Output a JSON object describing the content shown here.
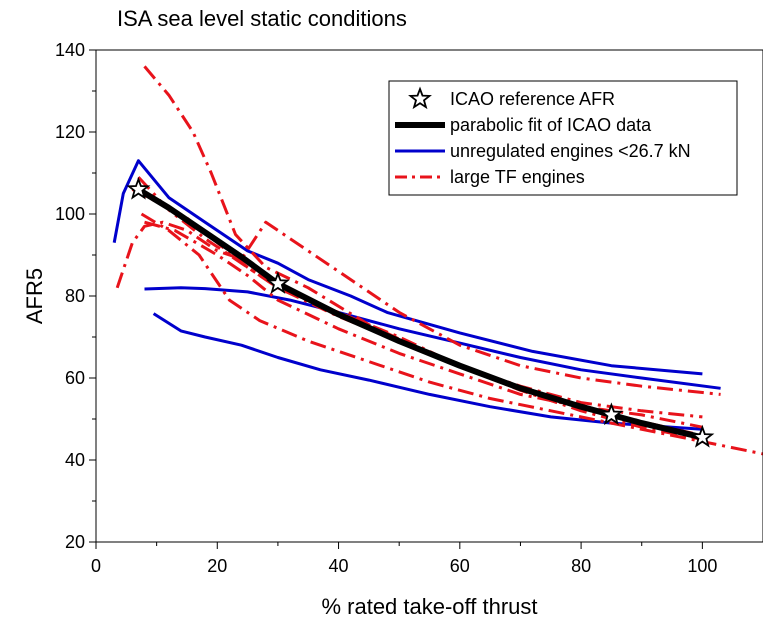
{
  "chart_data": {
    "type": "line",
    "title": "ISA sea level static conditions",
    "xlabel": "% rated take-off thrust",
    "ylabel": "AFR5",
    "xlim": [
      0,
      110
    ],
    "ylim": [
      20,
      140
    ],
    "x_ticks": [
      0,
      20,
      40,
      60,
      80,
      100
    ],
    "y_ticks": [
      20,
      40,
      60,
      80,
      100,
      120,
      140
    ],
    "grid": false,
    "legend_position": "top-right",
    "legend": [
      {
        "label": "ICAO reference AFR",
        "style": "star",
        "color": "#000000"
      },
      {
        "label": "parabolic fit of ICAO data",
        "style": "thick",
        "color": "#000000"
      },
      {
        "label": "unregulated engines <26.7 kN",
        "style": "solid",
        "color": "#0000cc"
      },
      {
        "label": "large TF engines",
        "style": "dashdot",
        "color": "#e8131b"
      }
    ],
    "series": [
      {
        "kind": "unregulated",
        "color": "#0000cc",
        "points": [
          [
            3,
            93
          ],
          [
            4.5,
            105
          ],
          [
            7,
            113
          ],
          [
            12,
            104
          ],
          [
            18,
            98
          ],
          [
            25,
            91
          ],
          [
            30,
            88
          ],
          [
            35,
            84
          ],
          [
            42,
            80
          ],
          [
            48,
            76
          ],
          [
            60,
            71
          ],
          [
            72,
            66.5
          ],
          [
            85,
            63
          ],
          [
            100,
            61
          ]
        ]
      },
      {
        "kind": "unregulated",
        "color": "#0000cc",
        "points": [
          [
            8,
            81.7
          ],
          [
            14,
            82
          ],
          [
            18,
            81.8
          ],
          [
            25,
            81
          ],
          [
            32,
            79
          ],
          [
            40,
            76
          ],
          [
            50,
            72
          ],
          [
            60,
            68.5
          ],
          [
            70,
            65
          ],
          [
            80,
            62
          ],
          [
            90,
            60
          ],
          [
            103,
            57.5
          ]
        ]
      },
      {
        "kind": "unregulated",
        "color": "#0000cc",
        "points": [
          [
            9.5,
            75.7
          ],
          [
            14,
            71.5
          ],
          [
            18,
            70
          ],
          [
            24,
            68
          ],
          [
            30,
            65
          ],
          [
            37,
            62
          ],
          [
            45,
            59.5
          ],
          [
            55,
            56
          ],
          [
            65,
            53
          ],
          [
            75,
            50.5
          ],
          [
            85,
            49
          ],
          [
            100,
            47.5
          ]
        ]
      },
      {
        "kind": "large_tf",
        "color": "#e8131b",
        "points": [
          [
            8,
            136
          ],
          [
            12,
            129
          ],
          [
            16,
            120
          ],
          [
            19,
            110
          ],
          [
            23,
            95
          ],
          [
            28,
            87
          ],
          [
            35,
            82
          ],
          [
            45,
            73
          ],
          [
            55,
            66
          ],
          [
            65,
            60
          ],
          [
            75,
            55
          ],
          [
            85,
            51
          ],
          [
            100,
            46
          ]
        ]
      },
      {
        "kind": "large_tf",
        "color": "#e8131b",
        "points": [
          [
            3.5,
            82
          ],
          [
            6,
            93
          ],
          [
            8,
            97
          ],
          [
            11,
            98
          ],
          [
            15,
            96
          ],
          [
            20,
            91
          ],
          [
            24,
            89
          ],
          [
            28,
            98
          ],
          [
            32,
            94
          ],
          [
            40,
            86
          ],
          [
            50,
            76
          ],
          [
            60,
            68
          ],
          [
            70,
            63
          ],
          [
            80,
            60
          ],
          [
            90,
            58
          ],
          [
            103,
            56
          ]
        ]
      },
      {
        "kind": "large_tf",
        "color": "#e8131b",
        "points": [
          [
            7.5,
            100
          ],
          [
            12,
            96
          ],
          [
            17,
            90
          ],
          [
            22,
            79
          ],
          [
            27,
            74
          ],
          [
            35,
            69
          ],
          [
            45,
            64
          ],
          [
            55,
            59
          ],
          [
            65,
            55
          ],
          [
            75,
            52
          ],
          [
            85,
            49
          ],
          [
            95,
            46
          ],
          [
            110,
            41.5
          ]
        ]
      },
      {
        "kind": "large_tf",
        "color": "#e8131b",
        "points": [
          [
            6,
            106
          ],
          [
            10,
            103
          ],
          [
            15,
            99
          ],
          [
            20,
            93
          ],
          [
            25,
            87
          ],
          [
            30,
            82
          ],
          [
            40,
            76
          ],
          [
            50,
            70
          ],
          [
            60,
            63
          ],
          [
            70,
            58
          ],
          [
            80,
            54
          ],
          [
            90,
            52
          ],
          [
            100,
            50.5
          ]
        ]
      },
      {
        "kind": "large_tf",
        "color": "#e8131b",
        "points": [
          [
            7,
            109
          ],
          [
            12,
            101
          ],
          [
            18,
            94
          ],
          [
            24,
            88
          ],
          [
            30,
            82
          ],
          [
            40,
            75
          ],
          [
            50,
            69
          ],
          [
            60,
            63
          ],
          [
            70,
            57
          ],
          [
            80,
            52
          ],
          [
            90,
            48
          ],
          [
            100,
            45
          ]
        ]
      },
      {
        "kind": "large_tf",
        "color": "#e8131b",
        "points": [
          [
            8,
            98
          ],
          [
            13,
            96
          ],
          [
            20,
            90
          ],
          [
            25,
            85
          ],
          [
            30,
            79
          ],
          [
            40,
            72
          ],
          [
            50,
            66
          ],
          [
            60,
            61
          ],
          [
            70,
            56
          ],
          [
            80,
            53
          ],
          [
            90,
            51
          ],
          [
            100,
            48
          ]
        ]
      }
    ],
    "icao_fit": {
      "color": "#000000",
      "points": [
        [
          7,
          106
        ],
        [
          12,
          101.5
        ],
        [
          18,
          95.5
        ],
        [
          24,
          89.5
        ],
        [
          30,
          83
        ],
        [
          40,
          75.5
        ],
        [
          50,
          69
        ],
        [
          60,
          63
        ],
        [
          70,
          57.5
        ],
        [
          80,
          53
        ],
        [
          85,
          51
        ],
        [
          90,
          49
        ],
        [
          100,
          45.5
        ]
      ]
    },
    "icao_reference": {
      "color": "#000000",
      "points": [
        [
          7,
          106
        ],
        [
          30,
          83
        ],
        [
          85,
          51
        ],
        [
          100,
          45.5
        ]
      ]
    }
  }
}
